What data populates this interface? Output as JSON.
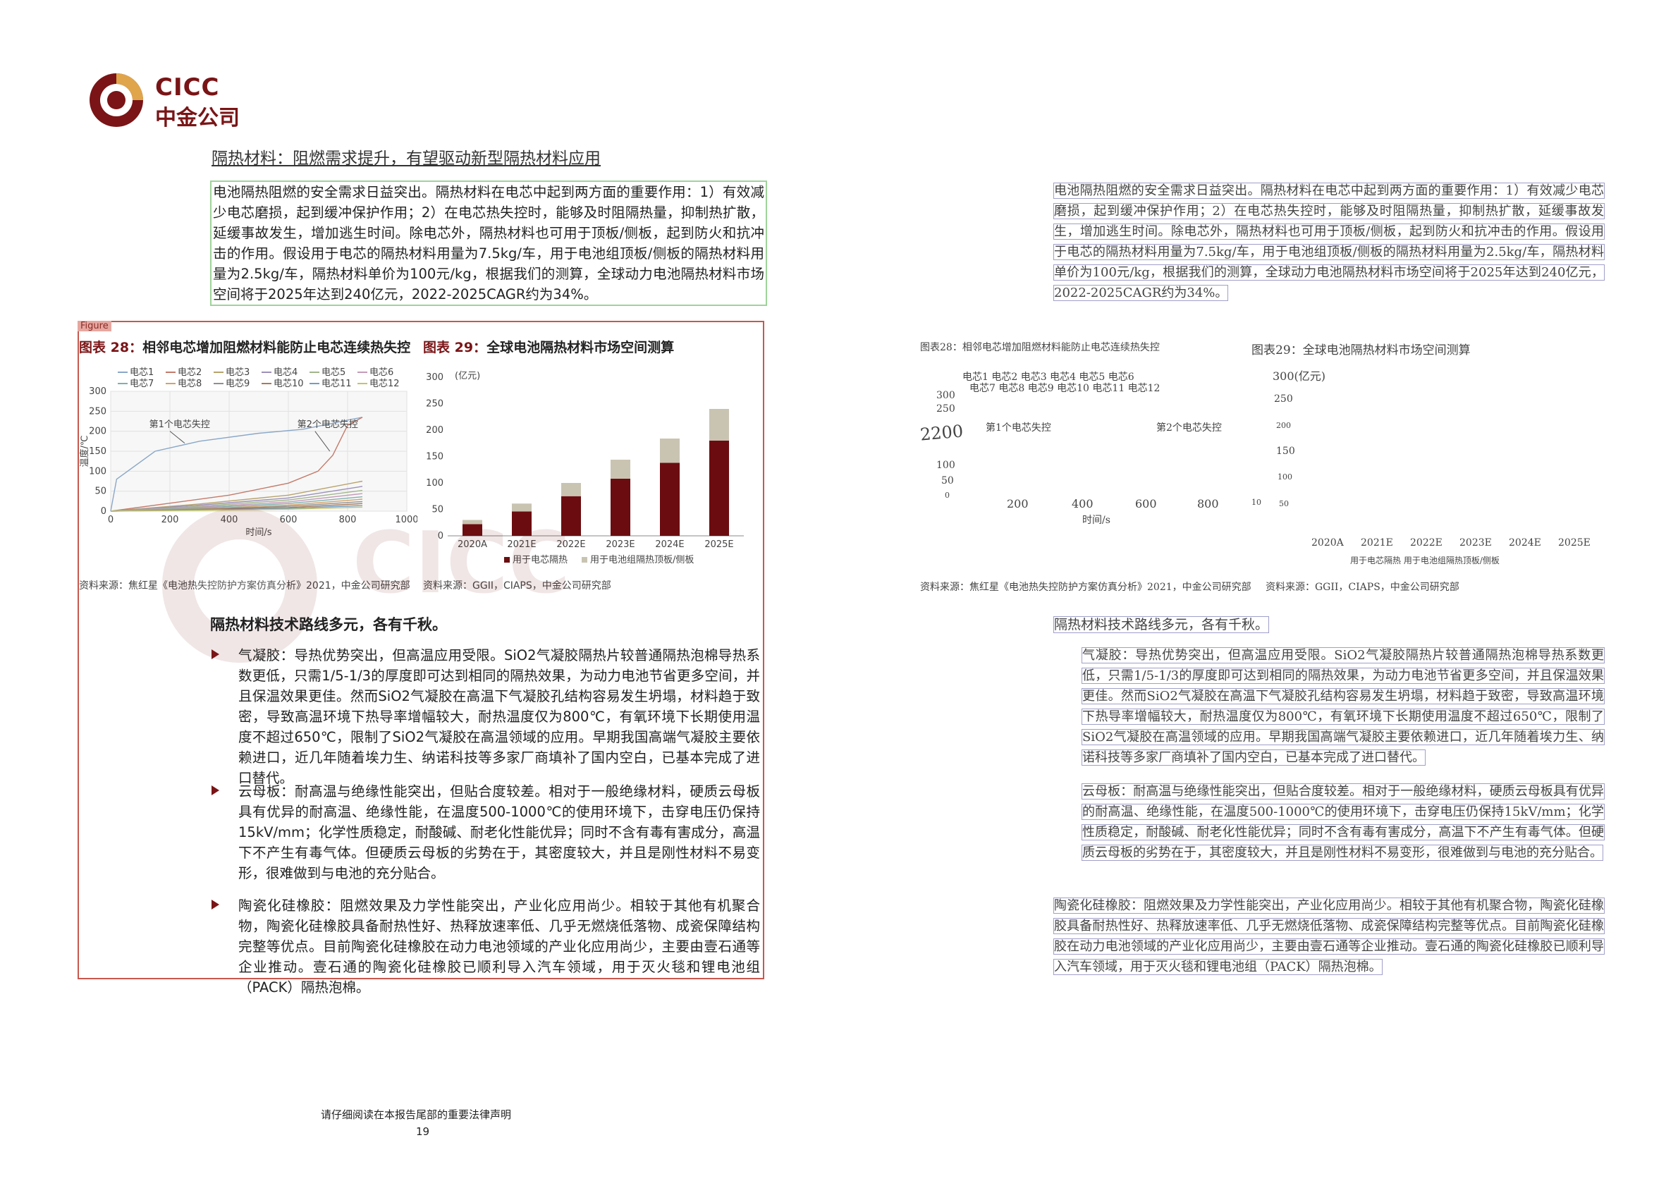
{
  "brand": {
    "name_en": "CICC",
    "name_cn": "中金公司",
    "color": "#7a1416"
  },
  "section_title": "隔热材料：阻燃需求提升，有望驱动新型隔热材料应用",
  "intro": "电池隔热阻燃的安全需求日益突出。隔热材料在电芯中起到两方面的重要作用：1）有效减少电芯磨损，起到缓冲保护作用；2）在电芯热失控时，能够及时阻隔热量，抑制热扩散，延缓事故发生，增加逃生时间。除电芯外，隔热材料也可用于顶板/侧板，起到防火和抗冲击的作用。假设用于电芯的隔热材料用量为7.5kg/车，用于电池组顶板/侧板的隔热材料用量为2.5kg/车，隔热材料单价为100元/kg，根据我们的测算，全球动力电池隔热材料市场空间将于2025年达到240亿元，2022-2025CAGR约为34%。",
  "figure_tag": "Figure",
  "fig28": {
    "label": "图表 28：",
    "title": "相邻电芯增加阻燃材料能防止电芯连续热失控",
    "source": "资料来源：焦红星《电池热失控防护方案仿真分析》2021，中金公司研究部",
    "legend": [
      "电芯1",
      "电芯2",
      "电芯3",
      "电芯4",
      "电芯5",
      "电芯6",
      "电芯7",
      "电芯8",
      "电芯9",
      "电芯10",
      "电芯11",
      "电芯12"
    ],
    "annot1": "第1个电芯失控",
    "annot2": "第2个电芯失控",
    "ylabel": "温度/℃",
    "xlabel": "时间/s"
  },
  "fig29": {
    "label": "图表 29：",
    "title": "全球电池隔热材料市场空间测算",
    "unit": "(亿元)",
    "source": "资料来源：GGII，CIAPS，中金公司研究部",
    "legend": [
      "用于电芯隔热",
      "用于电池组隔热顶板/侧板"
    ]
  },
  "chart_data": [
    {
      "type": "line",
      "title": "相邻电芯增加阻燃材料能防止电芯连续热失控",
      "xlabel": "时间/s",
      "ylabel": "温度/℃",
      "xlim": [
        0,
        1000
      ],
      "ylim": [
        0,
        300
      ],
      "xticks": [
        "0",
        "200",
        "400",
        "600",
        "800",
        "1000"
      ],
      "yticks": [
        "0",
        "50",
        "100",
        "150",
        "200",
        "250",
        "300"
      ],
      "series": [
        {
          "name": "电芯1",
          "x": [
            0,
            20,
            150,
            300,
            500,
            650,
            750,
            800,
            850
          ],
          "y": [
            0,
            80,
            150,
            175,
            195,
            205,
            220,
            228,
            235
          ]
        },
        {
          "name": "电芯2",
          "x": [
            0,
            200,
            400,
            600,
            700,
            750,
            800,
            850
          ],
          "y": [
            0,
            20,
            40,
            70,
            100,
            140,
            215,
            235
          ]
        },
        {
          "name": "电芯3",
          "x": [
            0,
            300,
            600,
            850
          ],
          "y": [
            0,
            18,
            40,
            75
          ]
        },
        {
          "name": "电芯4",
          "x": [
            0,
            300,
            600,
            850
          ],
          "y": [
            0,
            15,
            33,
            62
          ]
        },
        {
          "name": "电芯5",
          "x": [
            0,
            300,
            600,
            850
          ],
          "y": [
            0,
            12,
            28,
            52
          ]
        },
        {
          "name": "电芯6",
          "x": [
            0,
            300,
            600,
            850
          ],
          "y": [
            0,
            10,
            23,
            44
          ]
        },
        {
          "name": "电芯7",
          "x": [
            0,
            300,
            600,
            850
          ],
          "y": [
            0,
            8,
            19,
            36
          ]
        },
        {
          "name": "电芯8",
          "x": [
            0,
            300,
            600,
            850
          ],
          "y": [
            0,
            6,
            15,
            30
          ]
        },
        {
          "name": "电芯9",
          "x": [
            0,
            300,
            600,
            850
          ],
          "y": [
            0,
            5,
            12,
            24
          ]
        },
        {
          "name": "电芯10",
          "x": [
            0,
            300,
            600,
            850
          ],
          "y": [
            0,
            4,
            9,
            19
          ]
        },
        {
          "name": "电芯11",
          "x": [
            0,
            300,
            600,
            850
          ],
          "y": [
            0,
            3,
            7,
            14
          ]
        },
        {
          "name": "电芯12",
          "x": [
            0,
            300,
            600,
            850
          ],
          "y": [
            0,
            2,
            5,
            10
          ]
        }
      ],
      "colors": [
        "#8aa7c8",
        "#c47a6a",
        "#b8a26c",
        "#9c8fb8",
        "#a0b58a",
        "#c49bb8",
        "#7fb0b0",
        "#d1a36a",
        "#8f8f8f",
        "#a87a5a",
        "#6f9fc4",
        "#c4c46a"
      ],
      "annotations": [
        "第1个电芯失控",
        "第2个电芯失控"
      ]
    },
    {
      "type": "bar",
      "title": "全球电池隔热材料市场空间测算",
      "unit": "(亿元)",
      "categories": [
        "2020A",
        "2021E",
        "2022E",
        "2023E",
        "2024E",
        "2025E"
      ],
      "ylim": [
        0,
        300
      ],
      "yticks": [
        "0",
        "50",
        "100",
        "150",
        "200",
        "250",
        "300"
      ],
      "series": [
        {
          "name": "用于电芯隔热",
          "values": [
            22,
            46,
            75,
            108,
            138,
            180
          ],
          "color": "#6b0d10"
        },
        {
          "name": "用于电池组隔热顶板/侧板",
          "values": [
            8,
            15,
            25,
            36,
            46,
            60
          ],
          "color": "#c9c4b2"
        }
      ]
    }
  ],
  "subhead": "隔热材料技术路线多元，各有千秋。",
  "bullets": [
    "气凝胶：导热优势突出，但高温应用受限。SiO2气凝胶隔热片较普通隔热泡棉导热系数更低，只需1/5-1/3的厚度即可达到相同的隔热效果，为动力电池节省更多空间，并且保温效果更佳。然而SiO2气凝胶在高温下气凝胶孔结构容易发生坍塌，材料趋于致密，导致高温环境下热导率增幅较大，耐热温度仅为800℃，有氧环境下长期使用温度不超过650℃，限制了SiO2气凝胶在高温领域的应用。早期我国高端气凝胶主要依赖进口，近几年随着埃力生、纳诺科技等多家厂商填补了国内空白，已基本完成了进口替代。",
    "云母板：耐高温与绝缘性能突出，但贴合度较差。相对于一般绝缘材料，硬质云母板具有优异的耐高温、绝缘性能，在温度500-1000℃的使用环境下，击穿电压仍保持15kV/mm；化学性质稳定，耐酸碱、耐老化性能优异；同时不含有毒有害成分，高温下不产生有毒气体。但硬质云母板的劣势在于，其密度较大，并且是刚性材料不易变形，很难做到与电池的充分贴合。",
    "陶瓷化硅橡胶：阻燃效果及力学性能突出，产业化应用尚少。相较于其他有机聚合物，陶瓷化硅橡胶具备耐热性好、热释放速率低、几乎无燃烧低落物、成瓷保障结构完整等优点。目前陶瓷化硅橡胶在动力电池领域的产业化应用尚少，主要由壹石通等企业推动。壹石通的陶瓷化硅橡胶已顺利导入汽车领域，用于灭火毯和锂电池组（PACK）隔热泡棉。"
  ],
  "footer": "请仔细阅读在本报告尾部的重要法律声明",
  "page_number": "19",
  "right_page": {
    "fig28_label": "图表28：相邻电芯增加阻燃材料能防止电芯连续热失控",
    "fig29_label": "图表29：全球电池隔热材料市场空间测算",
    "unit": "300(亿元)",
    "fig28_source": "资料来源：焦红星《电池热失控防护方案仿真分析》2021，中金公司研究部",
    "fig29_source": "资料来源：GGII，CIAPS，中金公司研究部",
    "legend_line": "电芯1 电芯2 电芯3 电芯4 电芯5 电芯6",
    "legend_line2": "电芯7 电芯8 电芯9 电芯10 电芯11 电芯12",
    "annot1": "第1个电芯失控",
    "annot2": "第2个电芯失控",
    "time_label": "时间/s",
    "y_labels": [
      "300",
      "250",
      "200",
      "100",
      "50",
      "0"
    ],
    "y_labels_bar": [
      "250",
      "200",
      "150",
      "100",
      "50"
    ],
    "x_labels": [
      "200",
      "400",
      "600",
      "800",
      "10"
    ],
    "bar_x": [
      "2020A",
      "2021E",
      "2022E",
      "2023E",
      "2024E",
      "2025E"
    ],
    "bar_legend": "用于电芯隔热 用于电池组隔热顶板/侧板",
    "garbled_2200": "2200"
  }
}
